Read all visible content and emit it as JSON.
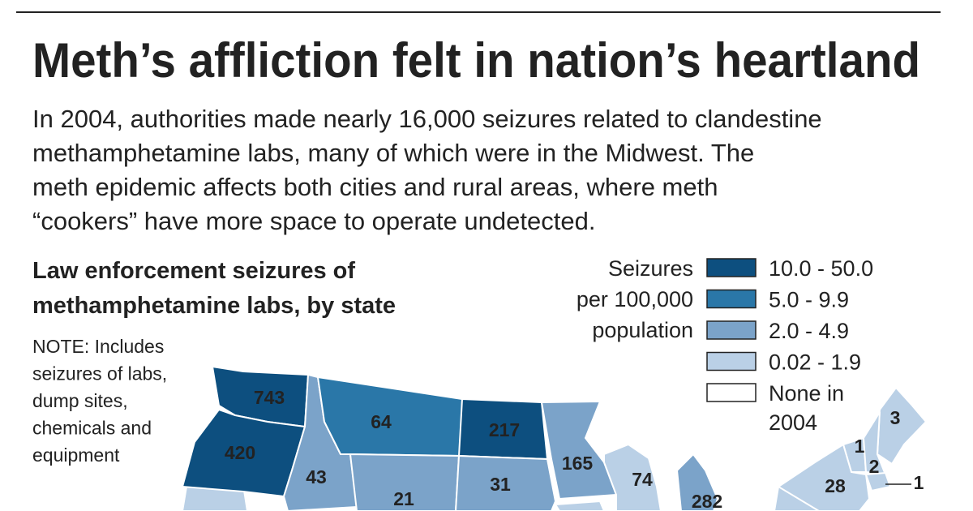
{
  "header": {
    "title": "Meth’s affliction felt in nation’s heartland",
    "intro": [
      "In 2004, authorities made nearly 16,000 seizures related to clandestine",
      "methamphetamine labs, many of which were in the Midwest. The",
      "meth epidemic affects both cities and rural areas, where meth",
      "“cookers” have more space to operate undetected."
    ]
  },
  "map": {
    "title": [
      "Law enforcement seizures of",
      "methamphetamine labs, by state"
    ],
    "note": [
      "NOTE: Includes",
      "seizures of labs,",
      "dump sites,",
      "chemicals and",
      "equipment"
    ],
    "legend": {
      "title": [
        "Seizures",
        "per 100,000",
        "population"
      ],
      "items": [
        {
          "lines": [
            "10.0 - 50.0"
          ],
          "color": "#0d4f7f"
        },
        {
          "lines": [
            "5.0 - 9.9"
          ],
          "color": "#2a77a8"
        },
        {
          "lines": [
            "2.0 - 4.9"
          ],
          "color": "#7ba3c9"
        },
        {
          "lines": [
            "0.02 - 1.9"
          ],
          "color": "#bad0e6"
        },
        {
          "lines": [
            "None in",
            "2004"
          ],
          "color": "#ffffff"
        }
      ]
    },
    "states": [
      {
        "label": 743,
        "color": "#0d4f7f"
      },
      {
        "label": 420,
        "color": "#0d4f7f"
      },
      {
        "label": 43,
        "color": "#7ba3c9"
      },
      {
        "label": 64,
        "color": "#2a77a8"
      },
      {
        "label": 217,
        "color": "#0d4f7f"
      },
      {
        "label": 165,
        "color": "#7ba3c9"
      },
      {
        "label": 21,
        "color": "#7ba3c9"
      },
      {
        "label": 31,
        "color": "#7ba3c9"
      },
      {
        "label": 74,
        "color": "#bad0e6"
      },
      {
        "label": 282,
        "color": "#7ba3c9"
      },
      {
        "label": 3,
        "color": "#bad0e6"
      },
      {
        "label": 1,
        "color": "#bad0e6"
      },
      {
        "label": 2,
        "color": "#bad0e6"
      },
      {
        "label": 28,
        "color": "#bad0e6"
      },
      {
        "label": 1,
        "color": "#bad0e6"
      }
    ]
  }
}
